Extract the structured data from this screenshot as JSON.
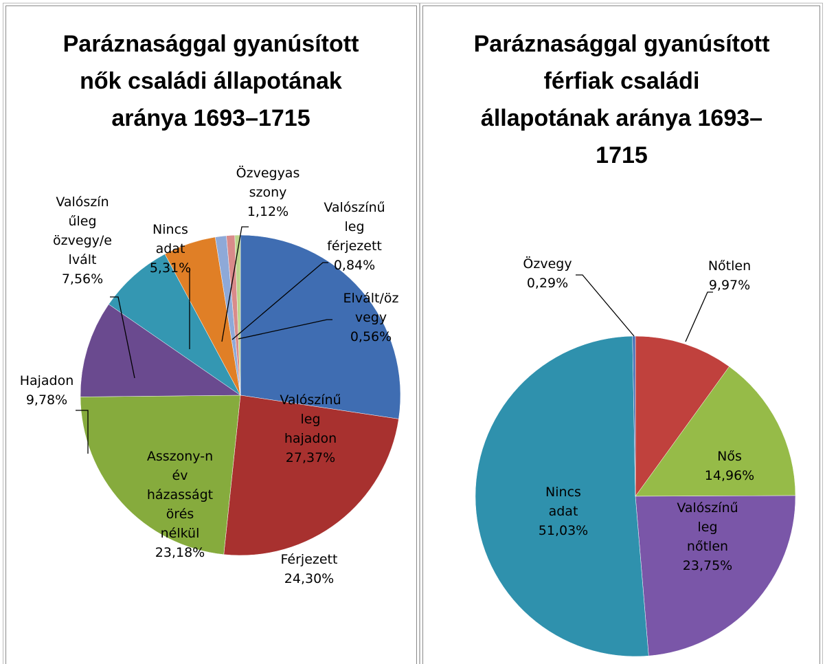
{
  "chart_data": [
    {
      "type": "pie",
      "title": "Paráznasággal gyanúsított nők családi állapotának aránya 1693–1715",
      "categories": [
        "Valószínűleg hajadon",
        "Férjezett",
        "Asszony-név házasságtörés nélkül",
        "Hajadon",
        "Valószínűleg özvegy/elvált",
        "Nincs adat",
        "Özvegyasszony",
        "Valószínűleg férjezett",
        "Elvált/özvegy"
      ],
      "values": [
        27.37,
        24.3,
        23.18,
        9.78,
        7.56,
        5.31,
        1.12,
        0.84,
        0.56
      ],
      "value_labels": [
        "27,37%",
        "24,30%",
        "23,18%",
        "9,78%",
        "7,56%",
        "5,31%",
        "1,12%",
        "0,84%",
        "0,56%"
      ],
      "colors": [
        "#3f6db2",
        "#a8312f",
        "#86ab3d",
        "#6a4a8f",
        "#3497b2",
        "#e07f26",
        "#8ea9d8",
        "#d98b8a",
        "#bcd48c"
      ]
    },
    {
      "type": "pie",
      "title": "Paráznasággal gyanúsított férfiak családi állapotának aránya 1693–1715",
      "categories": [
        "Nőtlen",
        "Nős",
        "Valószínűleg nőtlen",
        "Nincs adat",
        "Özvegy"
      ],
      "values": [
        9.97,
        14.96,
        23.75,
        51.03,
        0.29
      ],
      "value_labels": [
        "9,97%",
        "14,96%",
        "23,75%",
        "51,03%",
        "0,29%"
      ],
      "colors": [
        "#c0413d",
        "#96bb48",
        "#7a56a8",
        "#2f91ad",
        "#4a73b8"
      ]
    }
  ]
}
